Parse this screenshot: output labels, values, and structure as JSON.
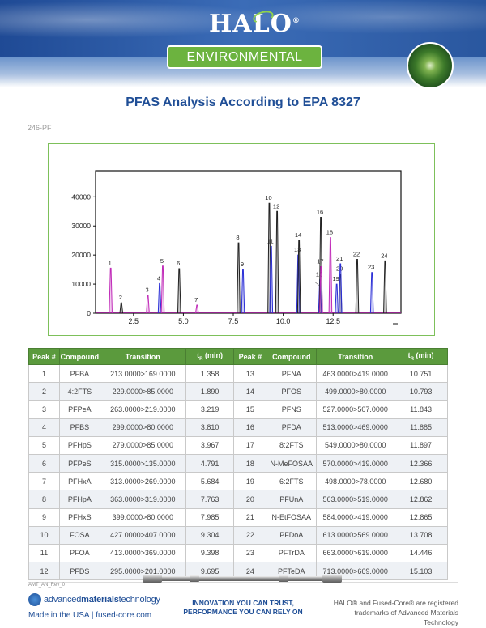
{
  "header": {
    "logo": "HALO",
    "logo_mark": "®",
    "banner": "ENVIRONMENTAL",
    "photo_icon": "tree-canopy-icon"
  },
  "title": "PFAS Analysis According to EPA 8327",
  "code": "246-PF",
  "chart_data": {
    "type": "line",
    "x_ticks": [
      2.5,
      5.0,
      7.5,
      10.0,
      12.5
    ],
    "y_ticks": [
      0,
      10000,
      20000,
      30000,
      40000
    ],
    "xlim": [
      0.6,
      15.9
    ],
    "ylim": [
      0,
      49000
    ],
    "grid": false,
    "colors": {
      "blue": "#2b2fd6",
      "magenta": "#c02ab8",
      "black": "#222222"
    },
    "peaks": [
      {
        "label": "1",
        "x": 1.358,
        "y": 15500,
        "color": "#c02ab8"
      },
      {
        "label": "2",
        "x": 1.89,
        "y": 3600,
        "color": "#222222"
      },
      {
        "label": "3",
        "x": 3.219,
        "y": 6200,
        "color": "#c02ab8"
      },
      {
        "label": "4",
        "x": 3.81,
        "y": 10200,
        "color": "#2b2fd6"
      },
      {
        "label": "5",
        "x": 3.967,
        "y": 16200,
        "color": "#c02ab8"
      },
      {
        "label": "6",
        "x": 4.791,
        "y": 15300,
        "color": "#222222"
      },
      {
        "label": "7",
        "x": 5.684,
        "y": 2800,
        "color": "#c02ab8"
      },
      {
        "label": "8",
        "x": 7.763,
        "y": 24200,
        "color": "#222222"
      },
      {
        "label": "9",
        "x": 7.985,
        "y": 15000,
        "color": "#2b2fd6"
      },
      {
        "label": "10",
        "x": 9.304,
        "y": 37800,
        "color": "#222222"
      },
      {
        "label": "11",
        "x": 9.398,
        "y": 23000,
        "color": "#2b2fd6"
      },
      {
        "label": "12",
        "x": 9.695,
        "y": 35000,
        "color": "#222222"
      },
      {
        "label": "13",
        "x": 10.751,
        "y": 20000,
        "color": "#2b2fd6"
      },
      {
        "label": "14",
        "x": 10.793,
        "y": 25000,
        "color": "#222222"
      },
      {
        "label": "15",
        "x": 11.843,
        "y": 11500,
        "color": "#2b2fd6"
      },
      {
        "label": "16",
        "x": 11.885,
        "y": 33000,
        "color": "#222222"
      },
      {
        "label": "17",
        "x": 11.897,
        "y": 16000,
        "color": "#c02ab8"
      },
      {
        "label": "18",
        "x": 12.366,
        "y": 26000,
        "color": "#c02ab8"
      },
      {
        "label": "19",
        "x": 12.68,
        "y": 10000,
        "color": "#2b2fd6"
      },
      {
        "label": "20",
        "x": 12.862,
        "y": 13500,
        "color": "#222222"
      },
      {
        "label": "21",
        "x": 12.865,
        "y": 17000,
        "color": "#2b2fd6"
      },
      {
        "label": "22",
        "x": 13.708,
        "y": 18500,
        "color": "#222222"
      },
      {
        "label": "23",
        "x": 14.446,
        "y": 14000,
        "color": "#2b2fd6"
      },
      {
        "label": "24",
        "x": 15.103,
        "y": 18000,
        "color": "#222222"
      }
    ]
  },
  "table": {
    "headers": [
      "Peak #",
      "Compound",
      "Transition",
      "t",
      "R",
      " (min)",
      "Peak #",
      "Compound",
      "Transition",
      "t",
      "R",
      " (min)"
    ],
    "rows": [
      [
        "1",
        "PFBA",
        "213.0000>169.0000",
        "1.358",
        "13",
        "PFNA",
        "463.0000>419.0000",
        "10.751"
      ],
      [
        "2",
        "4:2FTS",
        "229.0000>85.0000",
        "1.890",
        "14",
        "PFOS",
        "499.0000>80.0000",
        "10.793"
      ],
      [
        "3",
        "PFPeA",
        "263.0000>219.0000",
        "3.219",
        "15",
        "PFNS",
        "527.0000>507.0000",
        "11.843"
      ],
      [
        "4",
        "PFBS",
        "299.0000>80.0000",
        "3.810",
        "16",
        "PFDA",
        "513.0000>469.0000",
        "11.885"
      ],
      [
        "5",
        "PFHpS",
        "279.0000>85.0000",
        "3.967",
        "17",
        "8:2FTS",
        "549.0000>80.0000",
        "11.897"
      ],
      [
        "6",
        "PFPeS",
        "315.0000>135.0000",
        "4.791",
        "18",
        "N-MeFOSAA",
        "570.0000>419.0000",
        "12.366"
      ],
      [
        "7",
        "PFHxA",
        "313.0000>269.0000",
        "5.684",
        "19",
        "6:2FTS",
        "498.0000>78.0000",
        "12.680"
      ],
      [
        "8",
        "PFHpA",
        "363.0000>319.0000",
        "7.763",
        "20",
        "PFUnA",
        "563.0000>519.0000",
        "12.862"
      ],
      [
        "9",
        "PFHxS",
        "399.0000>80.0000",
        "7.985",
        "21",
        "N-EtFOSAA",
        "584.0000>419.0000",
        "12.865"
      ],
      [
        "10",
        "FOSA",
        "427.0000>407.0000",
        "9.304",
        "22",
        "PFDoA",
        "613.0000>569.0000",
        "13.708"
      ],
      [
        "11",
        "PFOA",
        "413.0000>369.0000",
        "9.398",
        "23",
        "PFTrDA",
        "663.0000>619.0000",
        "14.446"
      ],
      [
        "12",
        "PFDS",
        "295.0000>201.0000",
        "9.695",
        "24",
        "PFTeDA",
        "713.0000>669.0000",
        "15.103"
      ]
    ]
  },
  "footer": {
    "rev": "AMT_AN_Rev_0",
    "amt_logo_a": "advanced",
    "amt_logo_b": "materials",
    "amt_logo_c": "technology",
    "made_in": "Made in the USA | fused-core.com",
    "tagline_1": "INNOVATION YOU CAN TRUST,",
    "tagline_2": "PERFORMANCE YOU CAN RELY ON",
    "trademark_1": "HALO® and Fused-Core® are registered",
    "trademark_2": "trademarks of Advanced Materials Technology"
  }
}
